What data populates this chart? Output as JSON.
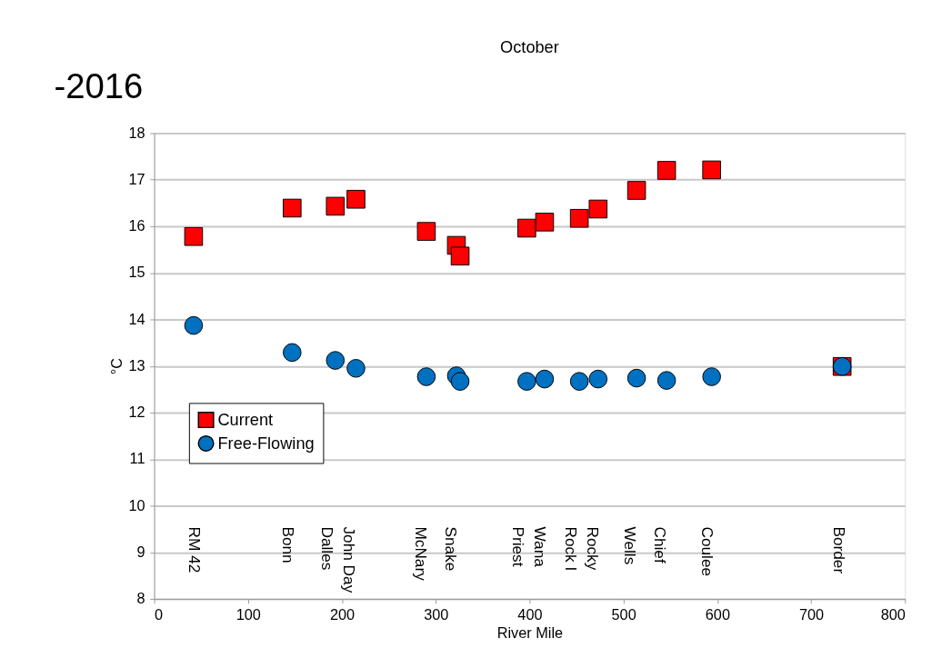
{
  "chart_data": {
    "type": "scatter",
    "title": "October",
    "xlabel": "River Mile",
    "ylabel": "°C",
    "xlim": [
      0,
      800
    ],
    "xticks": [
      0,
      100,
      200,
      300,
      400,
      500,
      600,
      700,
      800
    ],
    "ylim": [
      8,
      18
    ],
    "yticks": [
      8,
      9,
      10,
      11,
      12,
      13,
      14,
      15,
      16,
      17,
      18
    ],
    "grid": "y",
    "legend": "left",
    "series": [
      {
        "name": "Current",
        "color": "#ff0000",
        "marker": "square",
        "x": [
          42,
          147,
          193,
          215,
          290,
          322,
          326,
          397,
          416,
          453,
          473,
          514,
          546,
          594,
          733
        ],
        "values": [
          15.78,
          16.39,
          16.43,
          16.58,
          15.89,
          15.59,
          15.36,
          15.96,
          16.09,
          16.17,
          16.37,
          16.77,
          17.2,
          17.21,
          12.99
        ]
      },
      {
        "name": "Free-Flowing",
        "color": "#0070c0",
        "marker": "circle",
        "x": [
          42,
          147,
          193,
          215,
          290,
          322,
          326,
          397,
          416,
          453,
          473,
          514,
          546,
          594,
          733
        ],
        "values": [
          13.87,
          13.29,
          13.12,
          12.95,
          12.77,
          12.79,
          12.67,
          12.67,
          12.72,
          12.67,
          12.72,
          12.74,
          12.69,
          12.77,
          12.99
        ]
      }
    ],
    "annotations": [
      "RM 42",
      "Bonn",
      "Dalles",
      "John Day",
      "McNary",
      "Snake",
      "Priest",
      "Wana",
      "Rock I",
      "Rocky",
      "Wells",
      "Chief",
      "Coulee",
      "Border",
      "-2016"
    ]
  }
}
